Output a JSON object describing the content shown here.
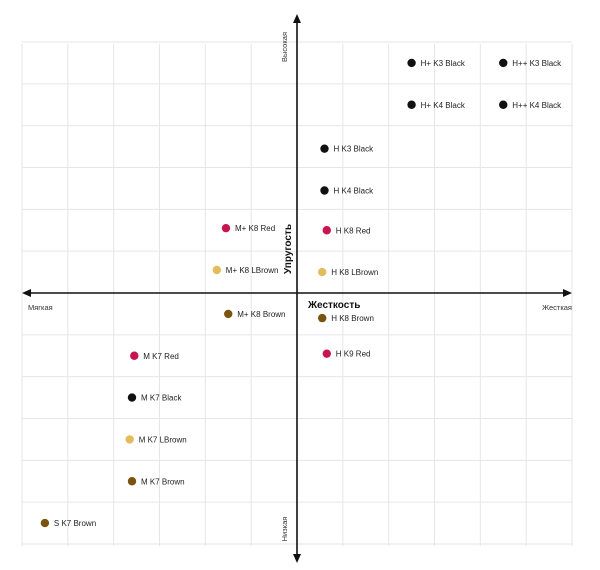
{
  "chart_data": {
    "type": "scatter",
    "x_axis": {
      "title": "Жесткость",
      "min_label": "Мягкая",
      "max_label": "Жесткая",
      "range": [
        -6,
        6
      ]
    },
    "y_axis": {
      "title": "Упругость",
      "min_label": "Низкая",
      "max_label": "Высокая",
      "range": [
        -6,
        6
      ]
    },
    "grid": true,
    "points": [
      {
        "label": "H+ K3 Black",
        "x": 2.5,
        "y": 5.5,
        "color": "#111111"
      },
      {
        "label": "H++ K3 Black",
        "x": 4.5,
        "y": 5.5,
        "color": "#111111"
      },
      {
        "label": "H+ K4 Black",
        "x": 2.5,
        "y": 4.5,
        "color": "#111111"
      },
      {
        "label": "H++ K4 Black",
        "x": 4.5,
        "y": 4.5,
        "color": "#111111"
      },
      {
        "label": "H K3 Black",
        "x": 0.6,
        "y": 3.45,
        "color": "#111111"
      },
      {
        "label": "H K4 Black",
        "x": 0.6,
        "y": 2.45,
        "color": "#111111"
      },
      {
        "label": "M+ K8 Red",
        "x": -1.55,
        "y": 1.55,
        "color": "#c8154f"
      },
      {
        "label": "H K8 Red",
        "x": 0.65,
        "y": 1.5,
        "color": "#c8154f"
      },
      {
        "label": "M+ K8 LBrown",
        "x": -1.75,
        "y": 0.55,
        "color": "#e3bd5c"
      },
      {
        "label": "H K8 LBrown",
        "x": 0.55,
        "y": 0.5,
        "color": "#e3bd5c"
      },
      {
        "label": "M+ K8 Brown",
        "x": -1.5,
        "y": -0.5,
        "color": "#7a5410"
      },
      {
        "label": "H K8 Brown",
        "x": 0.55,
        "y": -0.6,
        "color": "#7a5410"
      },
      {
        "label": "M K7 Red",
        "x": -3.55,
        "y": -1.5,
        "color": "#c8154f"
      },
      {
        "label": "H K9 Red",
        "x": 0.65,
        "y": -1.45,
        "color": "#c8154f"
      },
      {
        "label": "M K7 Black",
        "x": -3.6,
        "y": -2.5,
        "color": "#111111"
      },
      {
        "label": "M K7 LBrown",
        "x": -3.65,
        "y": -3.5,
        "color": "#e3bd5c"
      },
      {
        "label": "M K7 Brown",
        "x": -3.6,
        "y": -4.5,
        "color": "#7a5410"
      },
      {
        "label": "S K7 Brown",
        "x": -5.5,
        "y": -5.5,
        "color": "#7a5410"
      }
    ]
  }
}
